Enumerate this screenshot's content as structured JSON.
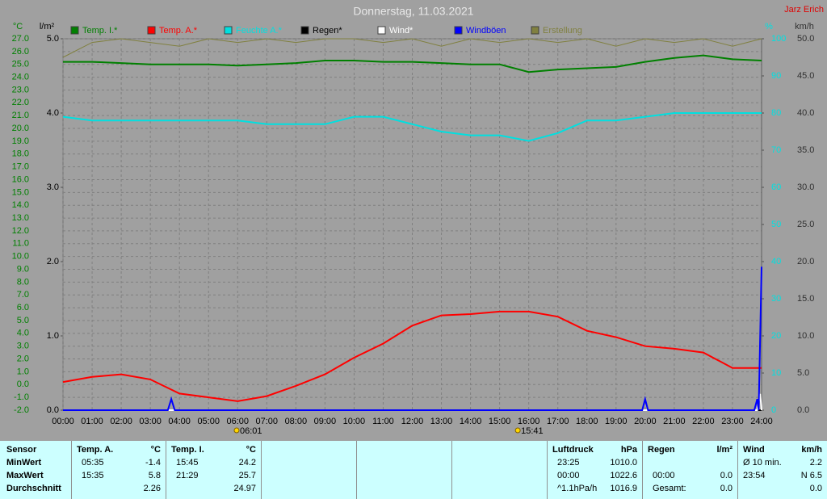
{
  "chart_data": {
    "type": "line",
    "title": "Donnerstag, 11.03.2021",
    "author": "Jarz Erich",
    "grid": true,
    "xlim": [
      0,
      24
    ],
    "xticks": [
      {
        "value": 0,
        "label": "00:00"
      },
      {
        "value": 1,
        "label": "01:00"
      },
      {
        "value": 2,
        "label": "02:00"
      },
      {
        "value": 3,
        "label": "03:00"
      },
      {
        "value": 4,
        "label": "04:00"
      },
      {
        "value": 5,
        "label": "05:00"
      },
      {
        "value": 6,
        "label": "06:00"
      },
      {
        "value": 7,
        "label": "07:00"
      },
      {
        "value": 8,
        "label": "08:00"
      },
      {
        "value": 9,
        "label": "09:00"
      },
      {
        "value": 10,
        "label": "10:00"
      },
      {
        "value": 11,
        "label": "11:00"
      },
      {
        "value": 12,
        "label": "12:00"
      },
      {
        "value": 13,
        "label": "13:00"
      },
      {
        "value": 14,
        "label": "14:00"
      },
      {
        "value": 15,
        "label": "15:00"
      },
      {
        "value": 16,
        "label": "16:00"
      },
      {
        "value": 17,
        "label": "17:00"
      },
      {
        "value": 18,
        "label": "18:00"
      },
      {
        "value": 19,
        "label": "19:00"
      },
      {
        "value": 20,
        "label": "20:00"
      },
      {
        "value": 21,
        "label": "21:00"
      },
      {
        "value": 22,
        "label": "22:00"
      },
      {
        "value": 23,
        "label": "23:00"
      },
      {
        "value": 24,
        "label": "24:00"
      }
    ],
    "x": [
      0,
      1,
      2,
      3,
      4,
      5,
      6,
      7,
      8,
      9,
      10,
      11,
      12,
      13,
      14,
      15,
      16,
      17,
      18,
      19,
      20,
      21,
      22,
      23,
      24
    ],
    "axes": {
      "temperature": {
        "label": "°C",
        "color": "#008000",
        "lim": [
          -2,
          27
        ],
        "ticks": [
          {
            "value": -2,
            "label": "-2.0"
          },
          {
            "value": -1,
            "label": "-1.0"
          },
          {
            "value": 0,
            "label": "0.0"
          },
          {
            "value": 1,
            "label": "1.0"
          },
          {
            "value": 2,
            "label": "2.0"
          },
          {
            "value": 3,
            "label": "3.0"
          },
          {
            "value": 4,
            "label": "4.0"
          },
          {
            "value": 5,
            "label": "5.0"
          },
          {
            "value": 6,
            "label": "6.0"
          },
          {
            "value": 7,
            "label": "7.0"
          },
          {
            "value": 8,
            "label": "8.0"
          },
          {
            "value": 9,
            "label": "9.0"
          },
          {
            "value": 10,
            "label": "10.0"
          },
          {
            "value": 11,
            "label": "11.0"
          },
          {
            "value": 12,
            "label": "12.0"
          },
          {
            "value": 13,
            "label": "13.0"
          },
          {
            "value": 14,
            "label": "14.0"
          },
          {
            "value": 15,
            "label": "15.0"
          },
          {
            "value": 16,
            "label": "16.0"
          },
          {
            "value": 17,
            "label": "17.0"
          },
          {
            "value": 18,
            "label": "18.0"
          },
          {
            "value": 19,
            "label": "19.0"
          },
          {
            "value": 20,
            "label": "20.0"
          },
          {
            "value": 21,
            "label": "21.0"
          },
          {
            "value": 22,
            "label": "22.0"
          },
          {
            "value": 23,
            "label": "23.0"
          },
          {
            "value": 24,
            "label": "24.0"
          },
          {
            "value": 25,
            "label": "25.0"
          },
          {
            "value": 26,
            "label": "26.0"
          },
          {
            "value": 27,
            "label": "27.0"
          }
        ]
      },
      "rain": {
        "label": "l/m²",
        "color": "#000000",
        "lim": [
          0,
          5
        ],
        "ticks": [
          {
            "value": 0,
            "label": "0.0"
          },
          {
            "value": 1,
            "label": "1.0"
          },
          {
            "value": 2,
            "label": "2.0"
          },
          {
            "value": 3,
            "label": "3.0"
          },
          {
            "value": 4,
            "label": "4.0"
          },
          {
            "value": 5,
            "label": "5.0"
          }
        ]
      },
      "humidity": {
        "label": "%",
        "color": "#00e0e0",
        "lim": [
          0,
          100
        ],
        "ticks": [
          0,
          10,
          20,
          30,
          40,
          50,
          60,
          70,
          80,
          90,
          100
        ]
      },
      "wind": {
        "label": "km/h",
        "color": "#303030",
        "lim": [
          0,
          50
        ],
        "ticks": [
          {
            "value": 0,
            "label": "0.0"
          },
          {
            "value": 5,
            "label": "5.0"
          },
          {
            "value": 10,
            "label": "10.0"
          },
          {
            "value": 15,
            "label": "15.0"
          },
          {
            "value": 20,
            "label": "20.0"
          },
          {
            "value": 25,
            "label": "25.0"
          },
          {
            "value": 30,
            "label": "30.0"
          },
          {
            "value": 35,
            "label": "35.0"
          },
          {
            "value": 40,
            "label": "40.0"
          },
          {
            "value": 45,
            "label": "45.0"
          },
          {
            "value": 50,
            "label": "50.0"
          }
        ]
      }
    },
    "series": [
      {
        "name": "Temp. I.*",
        "color": "#008000",
        "axis": "temperature",
        "values": [
          25.2,
          25.2,
          25.1,
          25.0,
          25.0,
          25.0,
          24.9,
          25.0,
          25.1,
          25.3,
          25.3,
          25.2,
          25.2,
          25.1,
          25.0,
          25.0,
          24.4,
          24.6,
          24.7,
          24.8,
          25.2,
          25.5,
          25.7,
          25.4,
          25.3
        ]
      },
      {
        "name": "Temp. A.*",
        "color": "#ff0000",
        "axis": "temperature",
        "values": [
          0.2,
          0.6,
          0.8,
          0.4,
          -0.7,
          -1.0,
          -1.3,
          -0.9,
          -0.1,
          0.8,
          2.1,
          3.2,
          4.6,
          5.4,
          5.5,
          5.7,
          5.7,
          5.3,
          4.2,
          3.7,
          3.0,
          2.8,
          2.5,
          1.3,
          1.3
        ]
      },
      {
        "name": "Feuchte A.*",
        "color": "#00e0e0",
        "axis": "humidity",
        "values": [
          79,
          78,
          78,
          78,
          78,
          78,
          78,
          77,
          77,
          77,
          79,
          79,
          77,
          75,
          74,
          74,
          72.5,
          74.6,
          78,
          78,
          79,
          80,
          80,
          80,
          80
        ]
      },
      {
        "name": "Regen*",
        "color": "#000000",
        "axis": "rain",
        "values": [
          0,
          0,
          0,
          0,
          0,
          0,
          0,
          0,
          0,
          0,
          0,
          0,
          0,
          0,
          0,
          0,
          0,
          0,
          0,
          0,
          0,
          0,
          0,
          0,
          0
        ]
      },
      {
        "name": "Wind*",
        "color": "#ffffff",
        "axis": "wind",
        "x": [
          0,
          23.85,
          23.95,
          24
        ],
        "values": [
          0,
          0,
          2.2,
          0
        ]
      },
      {
        "name": "Windböen",
        "color": "#0000ff",
        "axis": "wind",
        "x": [
          0,
          3.6,
          3.72,
          3.84,
          19.9,
          20.0,
          20.1,
          23.75,
          23.85,
          23.9,
          24.0
        ],
        "values": [
          0,
          0,
          1.5,
          0,
          0,
          1.5,
          0,
          0,
          1.5,
          0,
          19.3
        ]
      },
      {
        "name": "Erstellung",
        "color": "#808040",
        "axis": "humidity",
        "values": [
          95,
          99,
          100,
          99,
          98,
          100,
          99,
          100,
          99,
          100,
          100,
          99,
          100,
          98,
          100,
          99,
          100,
          99,
          100,
          98,
          100,
          99,
          100,
          98,
          100
        ]
      }
    ],
    "annotations": [
      {
        "x": 6.02,
        "label": "06:01"
      },
      {
        "x": 15.68,
        "label": "15:41"
      }
    ]
  },
  "summary": {
    "row_labels": [
      "Sensor",
      "MinWert",
      "MaxWert",
      "Durchschnitt"
    ],
    "blocks": [
      {
        "name": "Temp. A.",
        "unit": "°C",
        "rows": [
          [
            "05:35",
            "-1.4"
          ],
          [
            "15:35",
            "5.8"
          ],
          [
            null,
            "2.26"
          ]
        ]
      },
      {
        "name": "Temp. I.",
        "unit": "°C",
        "rows": [
          [
            "15:45",
            "24.2"
          ],
          [
            "21:29",
            "25.7"
          ],
          [
            null,
            "24.97"
          ]
        ]
      },
      {
        "name": "Luftdruck",
        "unit": "hPa",
        "rows": [
          [
            "23:25",
            "1010.0"
          ],
          [
            "00:00",
            "1022.6"
          ],
          [
            "^1.1hPa/h",
            "1016.9"
          ]
        ]
      },
      {
        "name": "Regen",
        "unit": "l/m²",
        "rows": [
          [
            null,
            null
          ],
          [
            "00:00",
            "0.0"
          ],
          [
            "Gesamt:",
            "0.0"
          ]
        ]
      },
      {
        "name": "Wind",
        "unit": "km/h",
        "rows": [
          [
            "Ø 10 min.",
            "2.2"
          ],
          [
            "23:54",
            "N 6.5"
          ],
          [
            null,
            "0.0"
          ]
        ]
      }
    ]
  }
}
